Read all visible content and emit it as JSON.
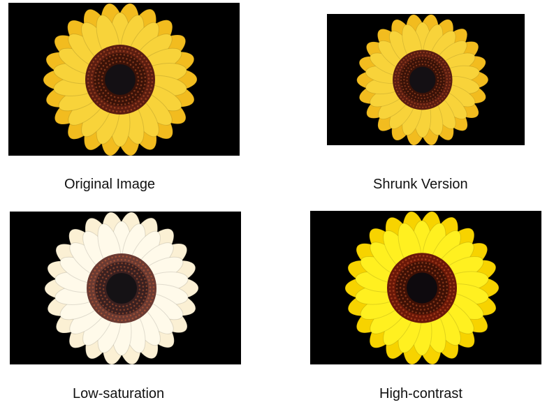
{
  "panels": [
    {
      "caption": "Original Image",
      "variant": "original",
      "colors": {
        "petal": "#f2bc1f",
        "petal_light": "#f8d33a",
        "disk_outer": "#5a1d10",
        "disk_mid": "#3a1208",
        "disk_center": "#141014"
      }
    },
    {
      "caption": "Shrunk Version",
      "variant": "shrunk",
      "colors": {
        "petal": "#f2bc1f",
        "petal_light": "#f8d33a",
        "disk_outer": "#5a1d10",
        "disk_mid": "#3a1208",
        "disk_center": "#141014"
      }
    },
    {
      "caption": "Low-saturation",
      "variant": "low-saturation",
      "colors": {
        "petal": "#fbf0d4",
        "petal_light": "#fffaea",
        "disk_outer": "#6a3a32",
        "disk_mid": "#3a2020",
        "disk_center": "#151215"
      }
    },
    {
      "caption": "High-contrast",
      "variant": "high-contrast",
      "colors": {
        "petal": "#f7d300",
        "petal_light": "#fff020",
        "disk_outer": "#6a1808",
        "disk_mid": "#3e1005",
        "disk_center": "#0e0a0e"
      }
    }
  ],
  "background_color": "#000000"
}
